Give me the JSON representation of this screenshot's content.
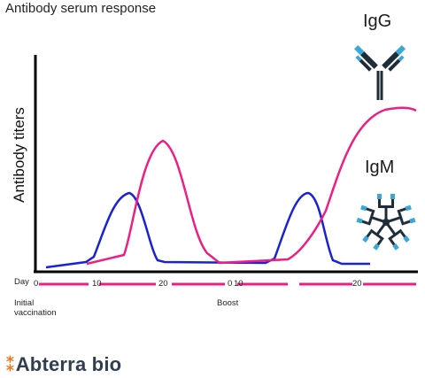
{
  "title": "Antibody serum response",
  "y_axis_label": "Antibody titers",
  "antibodies": {
    "igg": {
      "label": "IgG",
      "colors": {
        "body": "#1f2d3a",
        "tips": "#3aa7d9"
      }
    },
    "igm": {
      "label": "IgM",
      "colors": {
        "body": "#1f2d3a",
        "tips": "#3aa7d9"
      }
    }
  },
  "timeline": {
    "day_label": "Day",
    "tick_labels": [
      "0",
      "10",
      "20",
      "0",
      "10",
      "20"
    ],
    "phase_labels": {
      "initial": "Initial\nvaccination",
      "boost": "Boost"
    }
  },
  "series_colors": {
    "igm_curve": "#1a22d6",
    "igg_curve": "#ee1f82"
  },
  "brand": {
    "prefix": "Ab",
    "suffix": "terra bio",
    "mark_color": "#e87a1e",
    "text_color": "#2f3f4f"
  }
}
